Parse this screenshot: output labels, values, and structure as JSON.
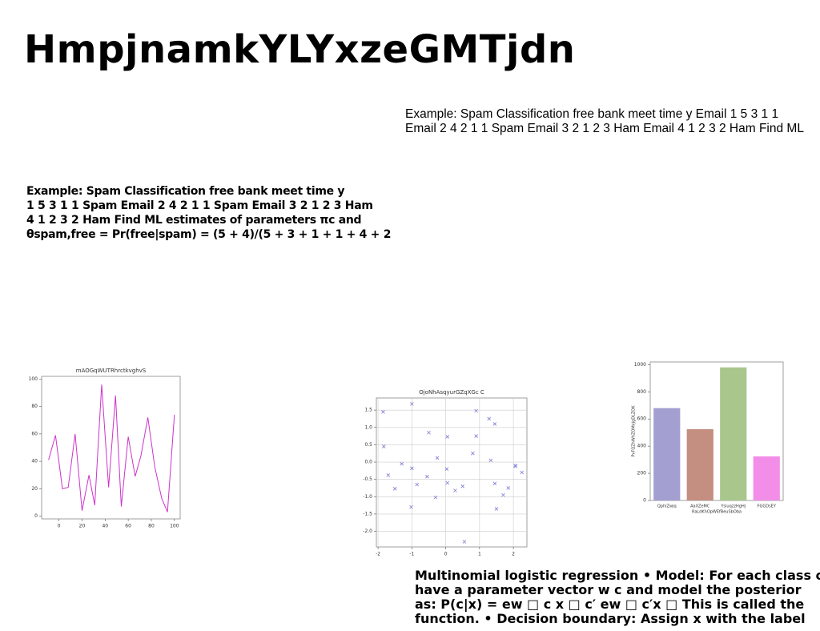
{
  "header": {
    "title": "HmpjnamkYLYxzeGMTjdn"
  },
  "blocks": [
    {
      "lines": [
        "Example: Spam Classification free bank meet time y Email 1 5 3 1 1",
        "Email 2 4 2 1 1 Spam Email 3 2 1 2 3 Ham Email 4 1 2 3 2 Ham Find ML"
      ]
    },
    {
      "lines": [
        "Example: Spam Classification free bank meet time y",
        "1 5 3 1 1 Spam Email 2 4 2 1 1 Spam Email 3 2 1 2 3 Ham",
        "4 1 2 3 2 Ham Find ML estimates of parameters πc and",
        "θspam,free = Pr(free|spam) = (5 + 4)/(5 + 3 + 1 + 1 + 4 + 2"
      ]
    },
    {
      "lines": [
        "Multinomial logistic regression • Model: For each class c,",
        "have a parameter vector w c and model the posterior",
        "as: P(c|x) = ew □ c x □ c′ ew □ c′x □ This is called the",
        "function. • Decision boundary: Assign x with the label"
      ]
    }
  ],
  "chart_data": [
    {
      "type": "line",
      "title": "mAOGqWUTRhrctkvghvS",
      "color": "#cc33cc",
      "x": [
        -9,
        -3,
        3,
        8,
        14,
        20,
        26,
        31,
        37,
        43,
        49,
        54,
        60,
        66,
        71,
        77,
        83,
        89,
        94,
        100
      ],
      "values": [
        41,
        59,
        20,
        21,
        60,
        4,
        30,
        8,
        96,
        21,
        88,
        7,
        58,
        29,
        44,
        72,
        36,
        13,
        3,
        74
      ],
      "xlim": [
        -15,
        105
      ],
      "ylim": [
        -2,
        102
      ],
      "xticks": [
        0,
        20,
        40,
        60,
        80,
        100
      ],
      "yticks": [
        0,
        20,
        40,
        60,
        80,
        100
      ]
    },
    {
      "type": "scatter",
      "title": "OjoNhAsqyurGZqXGc C",
      "color": "#7b7bd6",
      "grid": true,
      "x": [
        -1.85,
        -1.83,
        -1.7,
        -1.5,
        -1.3,
        -1.0,
        -1.0,
        -1.02,
        -0.85,
        -0.5,
        -0.55,
        -0.3,
        -0.25,
        0.05,
        0.03,
        0.05,
        0.28,
        0.5,
        0.55,
        0.8,
        0.9,
        0.9,
        1.28,
        1.45,
        1.33,
        1.45,
        1.5,
        1.7,
        1.85,
        2.05,
        2.07,
        2.25
      ],
      "values": [
        1.45,
        0.45,
        -0.38,
        -0.77,
        -0.05,
        1.68,
        -0.18,
        -1.3,
        -0.65,
        0.85,
        -0.42,
        -1.02,
        0.12,
        0.73,
        -0.2,
        -0.6,
        -0.82,
        -0.7,
        -2.3,
        0.25,
        1.48,
        0.75,
        1.25,
        1.1,
        0.05,
        -0.62,
        -1.35,
        -0.95,
        -0.75,
        -0.1,
        -0.12,
        -0.3
      ],
      "xlim": [
        -2.05,
        2.4
      ],
      "ylim": [
        -2.45,
        1.85
      ],
      "xticks": [
        -2,
        -1,
        0,
        1,
        2
      ],
      "yticks": [
        {
          "value": -2,
          "label": "-2.0"
        },
        -1.5,
        {
          "value": -1,
          "label": "-1.0"
        },
        -0.5,
        {
          "value": 0,
          "label": "0.0"
        },
        0.5,
        {
          "value": 1,
          "label": "1.0"
        },
        1.5
      ]
    },
    {
      "type": "bar",
      "x_label": "RaLdKhOpWEfBeuSbOba",
      "y_label": "PvFQZhWhZOMxJgDLZOK",
      "categories": [
        "QphiZwjq",
        "AaXZeMC",
        "YsiuqzzHgHj",
        "FGGDsEY"
      ],
      "values": [
        680,
        525,
        980,
        325
      ],
      "colors": [
        "#a39fd0",
        "#c48e80",
        "#a9c68d",
        "#f38ee8"
      ],
      "ylim": [
        0,
        1020
      ],
      "yticks": [
        0,
        200,
        400,
        600,
        800,
        1000
      ]
    }
  ]
}
